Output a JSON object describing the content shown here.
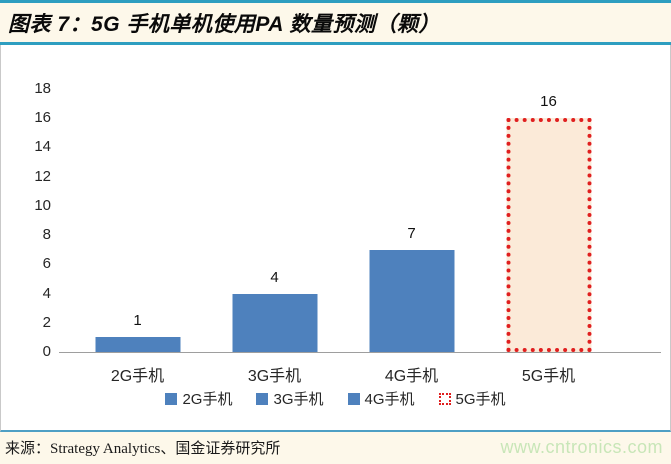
{
  "title_bar": {
    "title": "图表 7：5G 手机单机使用PA 数量预测（颗）"
  },
  "chart_data": {
    "type": "bar",
    "title": "5G 手机单机使用PA 数量预测（颗）",
    "categories": [
      "2G手机",
      "3G手机",
      "4G手机",
      "5G手机"
    ],
    "values": [
      1,
      4,
      7,
      16
    ],
    "data_labels": [
      "1",
      "4",
      "7",
      "16"
    ],
    "xlabel": "",
    "ylabel": "",
    "ylim": [
      0,
      18
    ],
    "ytick_step": 2,
    "grid": false,
    "legend_position": "bottom",
    "legend": [
      {
        "label": "2G手机",
        "swatch": "solid",
        "color": "#4E81BD"
      },
      {
        "label": "3G手机",
        "swatch": "solid",
        "color": "#4E81BD"
      },
      {
        "label": "4G手机",
        "swatch": "solid",
        "color": "#4E81BD"
      },
      {
        "label": "5G手机",
        "swatch": "dotted-outline",
        "color": "#E01F1F"
      }
    ],
    "bar_styles": [
      {
        "type": "solid",
        "color": "#4E81BD"
      },
      {
        "type": "solid",
        "color": "#4E81BD"
      },
      {
        "type": "solid",
        "color": "#4E81BD"
      },
      {
        "type": "dotted-outline",
        "border_color": "#E01F1F",
        "fill": "#FBEAD8"
      }
    ]
  },
  "footer": {
    "source": "来源：Strategy Analytics、国金证券研究所",
    "watermark": "www.cntronics.com"
  },
  "colors": {
    "accent_teal": "#2E9EC0",
    "bar_blue": "#4E81BD",
    "bar_5g_fill": "#FBEAD8",
    "bar_5g_border": "#E01F1F",
    "background_cream": "#FDF8EA",
    "panel_border_gray": "#C9C9C9",
    "axis_line_gray": "#9E9E9E",
    "watermark_green": "#C8E6B8"
  }
}
